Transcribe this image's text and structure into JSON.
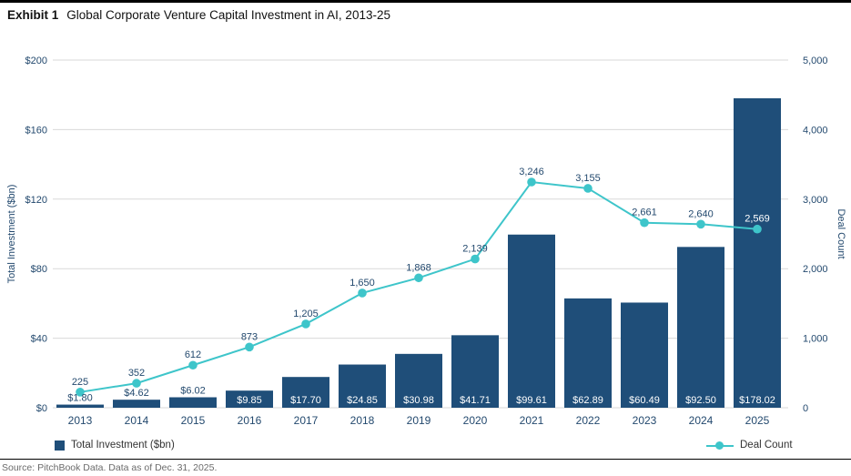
{
  "title": {
    "exhibit_label": "Exhibit 1",
    "text": "Global Corporate Venture Capital Investment in AI, 2013-25"
  },
  "legend": {
    "bar_label": "Total Investment ($bn)",
    "line_label": "Deal Count"
  },
  "source_text": "Source: PitchBook Data. Data as of Dec. 31, 2025.",
  "colors": {
    "bar": "#1f4e79",
    "line": "#3ec5ca",
    "axis_text": "#23496e",
    "grid": "#d9d9d9",
    "label_on_bar": "#ffffff",
    "data_label": "#23496e"
  },
  "chart_data": {
    "type": "bar+line",
    "title": "Global Corporate Venture Capital Investment in AI, 2013-25",
    "categories": [
      "2013",
      "2014",
      "2015",
      "2016",
      "2017",
      "2018",
      "2019",
      "2020",
      "2021",
      "2022",
      "2023",
      "2024",
      "2025"
    ],
    "series": [
      {
        "name": "Total Investment ($bn)",
        "type": "bar",
        "axis": "left",
        "values": [
          1.8,
          4.62,
          6.02,
          9.85,
          17.7,
          24.85,
          30.98,
          41.71,
          99.61,
          62.89,
          60.49,
          92.5,
          178.02
        ],
        "labels": [
          "$1.80",
          "$4.62",
          "$6.02",
          "$9.85",
          "$17.70",
          "$24.85",
          "$30.98",
          "$41.71",
          "$99.61",
          "$62.89",
          "$60.49",
          "$92.50",
          "$178.02"
        ],
        "label_placement": [
          "above",
          "above",
          "above",
          "inside",
          "inside",
          "inside",
          "inside",
          "inside",
          "inside",
          "inside",
          "inside",
          "inside",
          "inside"
        ]
      },
      {
        "name": "Deal Count",
        "type": "line",
        "axis": "right",
        "values": [
          225,
          352,
          612,
          873,
          1205,
          1650,
          1868,
          2139,
          3246,
          3155,
          2661,
          2640,
          2569
        ],
        "labels": [
          "225",
          "352",
          "612",
          "873",
          "1,205",
          "1,650",
          "1,868",
          "2,139",
          "3,246",
          "3,155",
          "2,661",
          "2,640",
          "2,569"
        ],
        "label_over_bar": [
          false,
          false,
          false,
          false,
          false,
          false,
          false,
          false,
          false,
          false,
          false,
          false,
          true
        ]
      }
    ],
    "left_axis": {
      "label": "Total Investment ($bn)",
      "ticks": [
        "$0",
        "$40",
        "$80",
        "$120",
        "$160",
        "$200"
      ],
      "min": 0,
      "max": 200
    },
    "right_axis": {
      "label": "Deal Count",
      "ticks": [
        "0",
        "1,000",
        "2,000",
        "3,000",
        "4,000",
        "5,000"
      ],
      "min": 0,
      "max": 5000
    },
    "grid": true,
    "legend_position": "bottom"
  }
}
